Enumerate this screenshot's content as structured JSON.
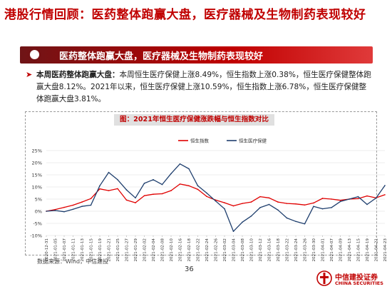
{
  "page": {
    "title": "港股行情回顾：医药整体跑赢大盘，医疗器械及生物制药表现较好",
    "banner": "医药整体跑赢大盘，医疗器械及生物制药表现较好",
    "summary_lead": "本周医药整体跑赢大盘：",
    "summary_body": "本周恒生医疗保健上涨8.49%，恒生指数上涨0.38%，恒生医疗保健整体跑赢大盘8.12%。2021年以来，恒生医疗保健上涨10.59%，恒生指数上涨6.78%，恒生医疗保健整体跑赢大盘3.81%。",
    "chart_title": "图：2021年恒生医疗保健涨跌幅与恒生指数对比",
    "source": "数据来源：Wind，中信建投",
    "page_number": "36",
    "logo_cn": "中信建投证券",
    "logo_en": "CHINA SECURITIES"
  },
  "colors": {
    "brand": "#c00000",
    "series_hsi": "#e00000",
    "series_hshc": "#1f3f6e"
  },
  "chart_data": {
    "type": "line",
    "title": "图：2021年恒生医疗保健涨跌幅与恒生指数对比",
    "ylim": [
      -10,
      25
    ],
    "yticks": [
      "-10%",
      "-5%",
      "0%",
      "5%",
      "10%",
      "15%",
      "20%",
      "25%"
    ],
    "ytick_values": [
      -10,
      -5,
      0,
      5,
      10,
      15,
      20,
      25
    ],
    "legend_position": "top-center",
    "grid": true,
    "x": [
      "2020-12-31",
      "2021-01-05",
      "2021-01-07",
      "2021-01-11",
      "2021-01-13",
      "2021-01-15",
      "2021-01-19",
      "2021-01-21",
      "2021-01-25",
      "2021-01-27",
      "2021-01-29",
      "2021-02-02",
      "2021-02-04",
      "2021-02-08",
      "2021-02-10",
      "2021-02-16",
      "2021-02-18",
      "2021-02-22",
      "2021-02-24",
      "2021-02-26",
      "2021-03-02",
      "2021-03-04",
      "2021-03-08",
      "2021-03-10",
      "2021-03-12",
      "2021-03-16",
      "2021-03-18",
      "2021-03-22",
      "2021-03-24",
      "2021-03-26",
      "2021-03-30",
      "2021-04-01",
      "2021-04-07",
      "2021-04-09",
      "2021-04-13",
      "2021-04-15",
      "2021-04-19",
      "2021-04-21",
      "2021-04-23"
    ],
    "series": [
      {
        "name": "恒生指数",
        "values": [
          0,
          0.7,
          1.6,
          2.5,
          3.8,
          5.2,
          9.2,
          8.5,
          9.3,
          4.6,
          3.5,
          6.4,
          7.0,
          7.2,
          8.5,
          11.2,
          10.5,
          9.0,
          6.1,
          4.6,
          3.5,
          2.2,
          3.2,
          3.8,
          6.0,
          5.5,
          3.8,
          3.2,
          3.0,
          2.6,
          3.4,
          5.3,
          5.0,
          4.5,
          5.0,
          5.2,
          6.3,
          5.5,
          6.8
        ]
      },
      {
        "name": "恒生医疗保健",
        "values": [
          0,
          0.3,
          -0.2,
          0.8,
          2.0,
          2.5,
          10.5,
          16.0,
          13.0,
          8.8,
          5.5,
          11.5,
          13.0,
          11.0,
          15.5,
          19.5,
          17.5,
          10.5,
          7.5,
          4.2,
          1.0,
          -8.3,
          -4.5,
          -2.0,
          1.5,
          2.8,
          0.5,
          -2.8,
          -4.2,
          -5.2,
          2.0,
          1.0,
          1.5,
          4.0,
          5.0,
          6.0,
          2.8,
          5.4,
          10.6
        ]
      }
    ]
  }
}
